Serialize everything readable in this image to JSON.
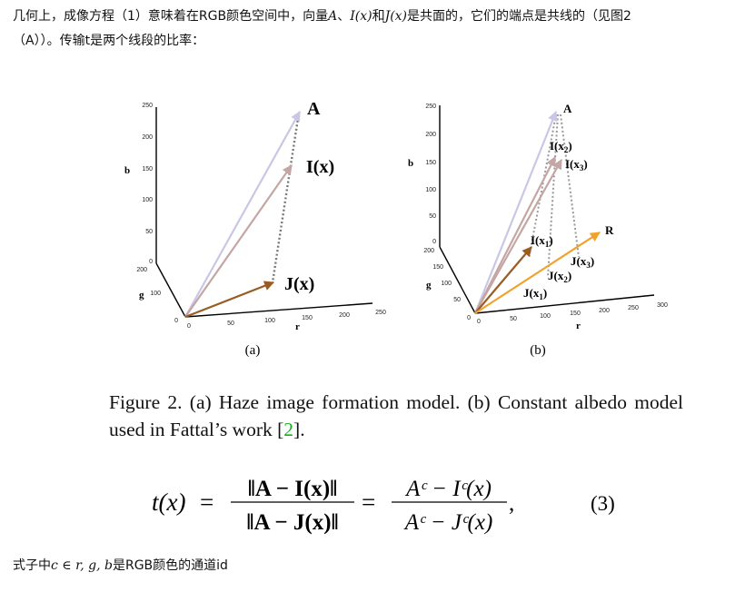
{
  "paragraph1": {
    "part1": "几何上，成像方程（1）意味着在RGB颜色空间中，向量",
    "var_a": "A",
    "sep": "、",
    "var_i": "I(x)",
    "and": "和",
    "var_j": "J(x)",
    "part2": "是共面的，它们的端点是共线的（见图2",
    "line2": "（A））。传输t是两个线段的比率："
  },
  "figure": {
    "panel_a": {
      "label": "(a)",
      "axis_b": "b",
      "axis_g": "g",
      "axis_r": "r",
      "b_ticks": [
        "250",
        "200",
        "150",
        "100",
        "50",
        "0"
      ],
      "g_ticks": [
        "200",
        "100",
        "0"
      ],
      "r_ticks": [
        "0",
        "50",
        "100",
        "150",
        "200",
        "250"
      ],
      "vec_a": "A",
      "vec_i": "I(x)",
      "vec_j": "J(x)"
    },
    "panel_b": {
      "label": "(b)",
      "axis_b": "b",
      "axis_g": "g",
      "axis_r": "r",
      "b_ticks": [
        "250",
        "200",
        "150",
        "100",
        "50",
        "0"
      ],
      "g_ticks": [
        "200",
        "150",
        "100",
        "50",
        "0"
      ],
      "r_ticks": [
        "0",
        "50",
        "100",
        "150",
        "200",
        "250",
        "300"
      ],
      "vec_a": "A",
      "i_base": "I(x",
      "j_base": "J(x",
      "sub1": "1",
      "sub2": "2",
      "sub3": "3",
      "close": ")",
      "vec_r": "R"
    },
    "colors": {
      "airlight": "#cac6e6",
      "hazy": "#c4a6a4",
      "scene_a": "#9a5c25",
      "scene_b": "#f0a22c",
      "dotted": "#777777"
    }
  },
  "caption": {
    "text_before": "Figure 2. (a) Haze image formation model. (b) Constant albedo model used in Fattal’s work [",
    "ref": "2",
    "text_after": "]."
  },
  "equation": {
    "lhs": "t(x)",
    "num1": "‖A − I(x)‖",
    "den1": "‖A − J(x)‖",
    "num2": "Aᶜ − Iᶜ(x)",
    "den2": "Aᶜ − Jᶜ(x)",
    "equals": "=",
    "comma": ",",
    "number": "(3)"
  },
  "paragraph2": {
    "part1": "式子中",
    "math": "c ∈ r, g, b",
    "part2": "是RGB颜色的通道id"
  }
}
